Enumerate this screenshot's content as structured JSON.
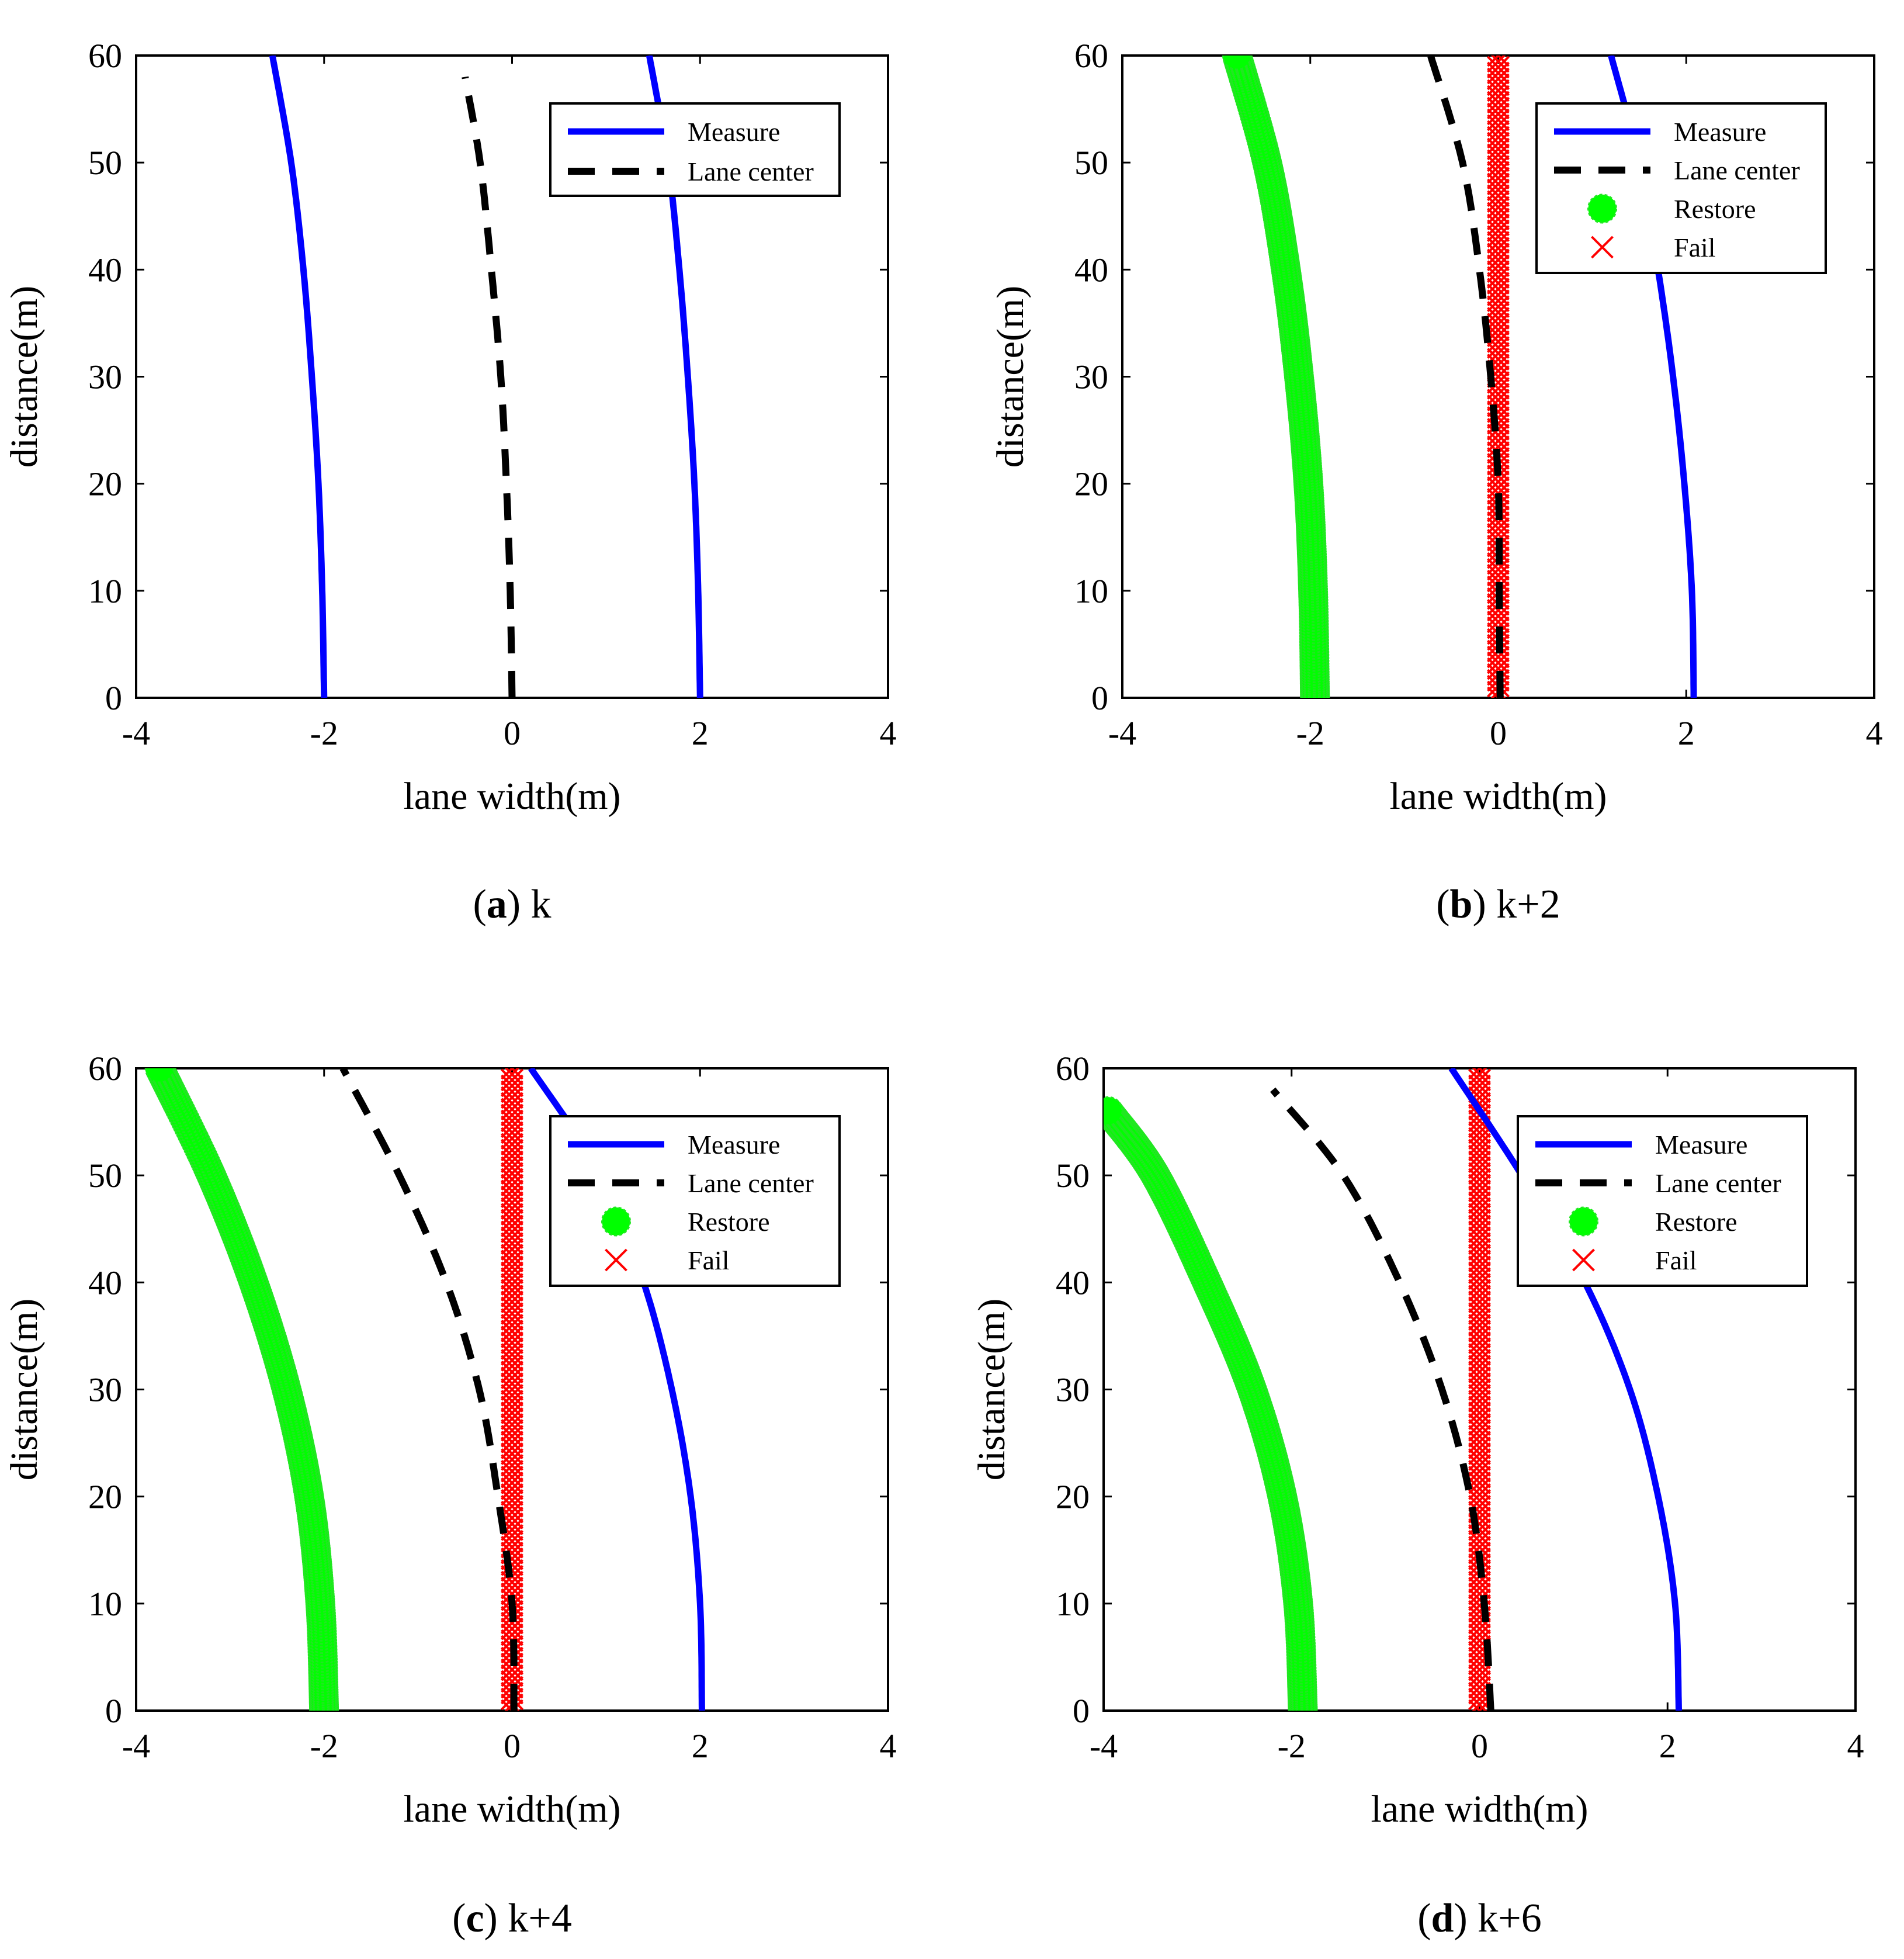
{
  "figure": {
    "id": "lane-detection-sequence"
  },
  "chart_data": [
    {
      "panel": "a",
      "type": "line",
      "caption_letter": "a",
      "caption_text": "k",
      "xlabel": "lane width(m)",
      "ylabel": "distance(m)",
      "xlim": [
        -4,
        4
      ],
      "ylim": [
        0,
        60
      ],
      "xticks": [
        -4,
        -2,
        0,
        2,
        4
      ],
      "yticks": [
        0,
        10,
        20,
        30,
        40,
        50,
        60
      ],
      "legend": {
        "position": "top-right",
        "entries": [
          "Measure",
          "Lane center"
        ]
      },
      "series": [
        {
          "name": "Measure",
          "style": "solid",
          "color": "#0000ff",
          "x": [
            -2.0,
            -2.02,
            -2.06,
            -2.13,
            -2.22,
            -2.35,
            -2.55
          ],
          "y": [
            0,
            10,
            20,
            30,
            40,
            50,
            60
          ]
        },
        {
          "name": "Measure",
          "style": "solid",
          "color": "#0000ff",
          "x": [
            2.0,
            1.98,
            1.94,
            1.87,
            1.78,
            1.66,
            1.46
          ],
          "y": [
            0,
            10,
            20,
            30,
            40,
            50,
            60
          ]
        },
        {
          "name": "Lane center",
          "style": "dashed",
          "color": "#000000",
          "x": [
            0.0,
            -0.02,
            -0.06,
            -0.12,
            -0.22,
            -0.34,
            -0.5
          ],
          "y": [
            0,
            10,
            20,
            30,
            40,
            50,
            58
          ]
        }
      ]
    },
    {
      "panel": "b",
      "type": "line",
      "caption_letter": "b",
      "caption_text": "k+2",
      "xlabel": "lane width(m)",
      "ylabel": "distance(m)",
      "xlim": [
        -4,
        4
      ],
      "ylim": [
        0,
        60
      ],
      "xticks": [
        -4,
        -2,
        0,
        2,
        4
      ],
      "yticks": [
        0,
        10,
        20,
        30,
        40,
        50,
        60
      ],
      "legend": {
        "position": "top-right",
        "entries": [
          "Measure",
          "Lane center",
          "Restore",
          "Fail"
        ]
      },
      "series": [
        {
          "name": "Measure",
          "style": "solid",
          "color": "#0000ff",
          "x": [
            2.08,
            2.06,
            1.98,
            1.86,
            1.7,
            1.5,
            1.2
          ],
          "y": [
            0,
            10,
            20,
            30,
            40,
            50,
            60
          ]
        },
        {
          "name": "Lane center",
          "style": "dashed",
          "color": "#000000",
          "x": [
            0.02,
            0.01,
            0.0,
            -0.08,
            -0.2,
            -0.38,
            -0.72
          ],
          "y": [
            0,
            10,
            20,
            30,
            40,
            50,
            60
          ]
        },
        {
          "name": "Restore",
          "style": "marker-dot",
          "color": "#00ff00",
          "x": [
            -1.95,
            -1.97,
            -2.02,
            -2.12,
            -2.26,
            -2.46,
            -2.78
          ],
          "y": [
            0,
            10,
            20,
            30,
            40,
            50,
            60
          ]
        },
        {
          "name": "Fail",
          "style": "marker-x",
          "color": "#ff0000",
          "x": [
            0.0,
            0.0
          ],
          "y": [
            0,
            60
          ]
        }
      ]
    },
    {
      "panel": "c",
      "type": "line",
      "caption_letter": "c",
      "caption_text": "k+4",
      "xlabel": "lane width(m)",
      "ylabel": "distance(m)",
      "xlim": [
        -4,
        4
      ],
      "ylim": [
        0,
        60
      ],
      "xticks": [
        -4,
        -2,
        0,
        2,
        4
      ],
      "yticks": [
        0,
        10,
        20,
        30,
        40,
        50,
        60
      ],
      "legend": {
        "position": "top-right",
        "entries": [
          "Measure",
          "Lane center",
          "Restore",
          "Fail"
        ]
      },
      "series": [
        {
          "name": "Measure",
          "style": "solid",
          "color": "#0000ff",
          "x": [
            2.02,
            2.0,
            1.9,
            1.7,
            1.4,
            0.95,
            0.2
          ],
          "y": [
            0,
            10,
            20,
            30,
            40,
            50,
            60
          ]
        },
        {
          "name": "Lane center",
          "style": "dashed",
          "color": "#000000",
          "x": [
            0.02,
            0.0,
            -0.15,
            -0.35,
            -0.7,
            -1.2,
            -1.8
          ],
          "y": [
            0,
            10,
            20,
            30,
            40,
            50,
            60
          ]
        },
        {
          "name": "Restore",
          "style": "marker-dot",
          "color": "#00ff00",
          "x": [
            -2.0,
            -2.04,
            -2.16,
            -2.4,
            -2.75,
            -3.2,
            -3.75
          ],
          "y": [
            0,
            10,
            20,
            30,
            40,
            50,
            60
          ]
        },
        {
          "name": "Fail",
          "style": "marker-x",
          "color": "#ff0000",
          "x": [
            0.0,
            0.0
          ],
          "y": [
            0,
            60
          ]
        }
      ]
    },
    {
      "panel": "d",
      "type": "line",
      "caption_letter": "d",
      "caption_text": "k+6",
      "xlabel": "lane width(m)",
      "ylabel": "distance(m)",
      "xlim": [
        -4,
        4
      ],
      "ylim": [
        0,
        60
      ],
      "xticks": [
        -4,
        -2,
        0,
        2,
        4
      ],
      "yticks": [
        0,
        10,
        20,
        30,
        40,
        50,
        60
      ],
      "legend": {
        "position": "top-right",
        "entries": [
          "Measure",
          "Lane center",
          "Restore",
          "Fail"
        ]
      },
      "series": [
        {
          "name": "Measure",
          "style": "solid",
          "color": "#0000ff",
          "x": [
            2.12,
            2.08,
            1.9,
            1.6,
            1.12,
            0.45,
            -0.3
          ],
          "y": [
            0,
            10,
            20,
            30,
            40,
            50,
            60
          ]
        },
        {
          "name": "Lane center",
          "style": "dashed",
          "color": "#000000",
          "x": [
            0.12,
            0.05,
            -0.1,
            -0.4,
            -0.85,
            -1.45,
            -2.2
          ],
          "y": [
            0,
            10,
            20,
            30,
            40,
            50,
            58
          ]
        },
        {
          "name": "Restore",
          "style": "marker-dot",
          "color": "#00ff00",
          "x": [
            -1.88,
            -1.93,
            -2.1,
            -2.42,
            -2.9,
            -3.45,
            -3.95
          ],
          "y": [
            0,
            10,
            20,
            30,
            40,
            50,
            56
          ]
        },
        {
          "name": "Fail",
          "style": "marker-x",
          "color": "#ff0000",
          "x": [
            0.0,
            0.0
          ],
          "y": [
            0,
            60
          ]
        }
      ]
    }
  ]
}
